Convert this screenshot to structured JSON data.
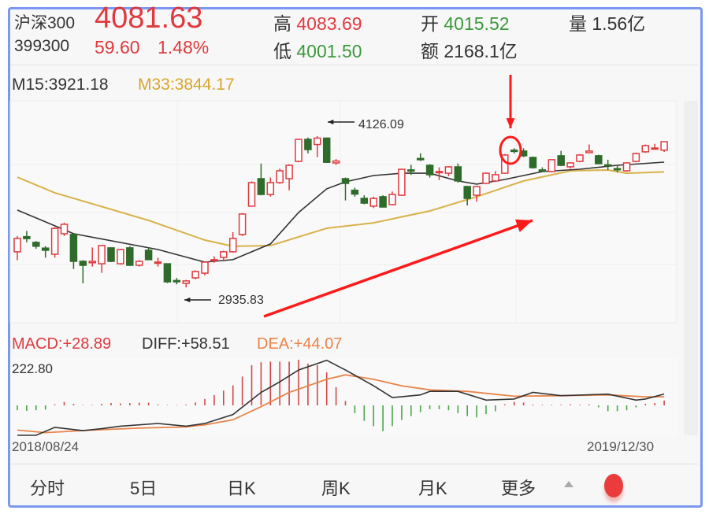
{
  "header": {
    "name": "沪深300",
    "code": "399300",
    "price": "4081.63",
    "change": "59.60",
    "change_pct": "1.48%",
    "high_label": "高",
    "high": "4083.69",
    "low_label": "低",
    "low": "4001.50",
    "open_label": "开",
    "open": "4015.52",
    "amount_label": "额",
    "amount": "2168.1亿",
    "volume_label": "量",
    "volume": "1.56亿"
  },
  "ma_legend": {
    "m15": "M15:3921.18",
    "m33": "M33:3844.17"
  },
  "macd_legend": {
    "macd": "MACD:+28.89",
    "diff": "DIFF:+58.51",
    "dea": "DEA:+44.07"
  },
  "tabs": [
    {
      "label": "分时",
      "active": false
    },
    {
      "label": "5日",
      "active": false
    },
    {
      "label": "日K",
      "active": false
    },
    {
      "label": "周K",
      "active": true
    },
    {
      "label": "月K",
      "active": false
    },
    {
      "label": "更多",
      "active": false
    }
  ],
  "more_icon": "triangle-up-icon",
  "record_icon": "red-dot-icon",
  "colors": {
    "up": "#e0393e",
    "down": "#2f6b2a",
    "m15": "#333333",
    "m33": "#d8b24a",
    "diff": "#333333",
    "dea": "#e8844a",
    "annotation": "#ff1a1a",
    "frame": "#7b97ef"
  },
  "chart_data": [
    {
      "type": "candlestick",
      "period": "weekly",
      "ylim": [
        2782,
        4280
      ],
      "yticks": [
        "4280",
        "3905",
        "3531",
        "3156",
        "2782"
      ],
      "x_start_label": "2018/08/24",
      "x_end_label": "2019/12/30",
      "grid": true,
      "ohlc_fields": [
        "open",
        "high",
        "low",
        "close"
      ],
      "candles": [
        [
          3216,
          3340,
          3150,
          3321
        ],
        [
          3335,
          3380,
          3290,
          3320
        ],
        [
          3290,
          3300,
          3240,
          3260
        ],
        [
          3245,
          3260,
          3170,
          3228
        ],
        [
          3197,
          3410,
          3170,
          3400
        ],
        [
          3358,
          3445,
          3340,
          3432
        ],
        [
          3352,
          3360,
          3080,
          3141
        ],
        [
          3141,
          3150,
          2968,
          3110
        ],
        [
          3130,
          3250,
          3100,
          3141
        ],
        [
          3122,
          3270,
          3050,
          3265
        ],
        [
          3247,
          3250,
          3135,
          3141
        ],
        [
          3122,
          3240,
          3115,
          3234
        ],
        [
          3247,
          3260,
          3105,
          3110
        ],
        [
          3110,
          3150,
          3100,
          3141
        ],
        [
          3228,
          3250,
          3150,
          3154
        ],
        [
          3128,
          3170,
          3100,
          3135
        ],
        [
          3122,
          3125,
          2970,
          2980
        ],
        [
          2990,
          3010,
          2960,
          2980
        ],
        [
          2968,
          2995,
          2936,
          2987
        ],
        [
          3011,
          3070,
          3000,
          3061
        ],
        [
          3048,
          3140,
          3030,
          3135
        ],
        [
          3145,
          3180,
          3130,
          3154
        ],
        [
          3172,
          3225,
          3140,
          3216
        ],
        [
          3216,
          3370,
          3210,
          3321
        ],
        [
          3352,
          3520,
          3340,
          3513
        ],
        [
          3575,
          3770,
          3570,
          3760
        ],
        [
          3791,
          3910,
          3660,
          3667
        ],
        [
          3667,
          3800,
          3650,
          3760
        ],
        [
          3760,
          3870,
          3750,
          3853
        ],
        [
          3791,
          3905,
          3700,
          3896
        ],
        [
          3927,
          4105,
          3920,
          4100
        ],
        [
          4100,
          4115,
          3990,
          4020
        ],
        [
          4060,
          4126,
          3960,
          4110
        ],
        [
          4110,
          4115,
          3915,
          3920
        ],
        [
          3915,
          3945,
          3900,
          3930
        ],
        [
          3791,
          3800,
          3620,
          3754
        ],
        [
          3700,
          3720,
          3650,
          3670
        ],
        [
          3636,
          3660,
          3590,
          3599
        ],
        [
          3575,
          3650,
          3560,
          3636
        ],
        [
          3649,
          3660,
          3565,
          3568
        ],
        [
          3587,
          3690,
          3580,
          3667
        ],
        [
          3661,
          3870,
          3655,
          3865
        ],
        [
          3860,
          3900,
          3820,
          3850
        ],
        [
          3950,
          3990,
          3930,
          3940
        ],
        [
          3896,
          3905,
          3800,
          3822
        ],
        [
          3840,
          3880,
          3780,
          3847
        ],
        [
          3834,
          3890,
          3810,
          3884
        ],
        [
          3884,
          3910,
          3760,
          3773
        ],
        [
          3729,
          3735,
          3580,
          3636
        ],
        [
          3661,
          3735,
          3610,
          3729
        ],
        [
          3754,
          3840,
          3750,
          3834
        ],
        [
          3773,
          3850,
          3765,
          3822
        ],
        [
          3834,
          3985,
          3830,
          3977
        ],
        [
          4015,
          4030,
          3990,
          4005
        ],
        [
          4008,
          4030,
          3960,
          3971
        ],
        [
          3958,
          3965,
          3870,
          3878
        ],
        [
          3860,
          3880,
          3845,
          3853
        ],
        [
          3847,
          3945,
          3840,
          3940
        ],
        [
          3971,
          4010,
          3890,
          3896
        ],
        [
          3884,
          3920,
          3870,
          3915
        ],
        [
          3927,
          3985,
          3920,
          3977
        ],
        [
          3995,
          4060,
          3990,
          4008
        ],
        [
          3971,
          3980,
          3905,
          3909
        ],
        [
          3900,
          3940,
          3860,
          3896
        ],
        [
          3870,
          3900,
          3840,
          3865
        ],
        [
          3853,
          3920,
          3845,
          3915
        ],
        [
          3927,
          3995,
          3920,
          3989
        ],
        [
          4002,
          4060,
          3995,
          4051
        ],
        [
          4025,
          4065,
          4020,
          4032
        ],
        [
          4015.52,
          4083.69,
          4001.5,
          4081.63
        ]
      ],
      "ma15": [
        [
          0,
          3544
        ],
        [
          6,
          3358
        ],
        [
          15,
          3234
        ],
        [
          20,
          3135
        ],
        [
          23,
          3154
        ],
        [
          27,
          3278
        ],
        [
          30,
          3525
        ],
        [
          33,
          3711
        ],
        [
          35,
          3766
        ],
        [
          38,
          3816
        ],
        [
          41,
          3834
        ],
        [
          44,
          3834
        ],
        [
          47,
          3773
        ],
        [
          49,
          3748
        ],
        [
          52,
          3785
        ],
        [
          56,
          3847
        ],
        [
          60,
          3865
        ],
        [
          64,
          3896
        ],
        [
          69,
          3921.18
        ]
      ],
      "ma33": [
        [
          0,
          3803
        ],
        [
          4,
          3680
        ],
        [
          14,
          3463
        ],
        [
          20,
          3308
        ],
        [
          23,
          3259
        ],
        [
          27,
          3265
        ],
        [
          33,
          3401
        ],
        [
          38,
          3444
        ],
        [
          44,
          3537
        ],
        [
          49,
          3649
        ],
        [
          54,
          3773
        ],
        [
          59,
          3853
        ],
        [
          63,
          3859
        ],
        [
          65,
          3834
        ],
        [
          69,
          3844.17
        ]
      ],
      "annotations": [
        {
          "text": "4126.09",
          "candle": 32,
          "kind": "max"
        },
        {
          "text": "2935.83",
          "candle": 18,
          "kind": "min"
        }
      ]
    },
    {
      "type": "macd",
      "top_label": "222.80",
      "ylim": [
        -160,
        222.8
      ],
      "histogram": [
        -25,
        -28,
        -25,
        -22,
        5,
        18,
        8,
        2,
        2,
        8,
        12,
        10,
        12,
        14,
        14,
        5,
        2,
        2,
        4,
        15,
        33,
        53,
        76,
        103,
        148,
        207,
        222,
        225,
        225,
        225,
        235,
        215,
        207,
        170,
        94,
        23,
        -40,
        -80,
        -107,
        -133,
        -107,
        -75,
        -55,
        -35,
        -20,
        -20,
        -25,
        -40,
        -55,
        -62,
        -45,
        -30,
        5,
        18,
        15,
        4,
        3,
        3,
        3,
        5,
        3,
        5,
        -10,
        -30,
        -30,
        -25,
        -10,
        8,
        12,
        25
      ],
      "diff": [
        [
          0,
          -154
        ],
        [
          2,
          -154
        ],
        [
          4,
          -113
        ],
        [
          7,
          -130
        ],
        [
          9,
          -120
        ],
        [
          11,
          -107
        ],
        [
          15,
          -93
        ],
        [
          18,
          -107
        ],
        [
          20,
          -93
        ],
        [
          23,
          -47
        ],
        [
          26,
          67
        ],
        [
          28,
          121
        ],
        [
          30,
          182
        ],
        [
          33,
          232
        ],
        [
          35,
          182
        ],
        [
          38,
          101
        ],
        [
          40,
          40
        ],
        [
          43,
          54
        ],
        [
          44,
          72
        ],
        [
          47,
          72
        ],
        [
          50,
          27
        ],
        [
          53,
          33
        ],
        [
          55,
          67
        ],
        [
          58,
          50
        ],
        [
          63,
          58
        ],
        [
          66,
          27
        ],
        [
          67,
          33
        ],
        [
          69,
          58.51
        ]
      ],
      "dea": [
        [
          0,
          -127
        ],
        [
          3,
          -140
        ],
        [
          8,
          -127
        ],
        [
          13,
          -117
        ],
        [
          18,
          -111
        ],
        [
          20,
          -100
        ],
        [
          23,
          -74
        ],
        [
          26,
          -7
        ],
        [
          29,
          67
        ],
        [
          33,
          134
        ],
        [
          35,
          157
        ],
        [
          38,
          134
        ],
        [
          41,
          101
        ],
        [
          44,
          80
        ],
        [
          48,
          72
        ],
        [
          53,
          47
        ],
        [
          58,
          50
        ],
        [
          63,
          54
        ],
        [
          67,
          44
        ],
        [
          69,
          44.07
        ]
      ]
    }
  ]
}
